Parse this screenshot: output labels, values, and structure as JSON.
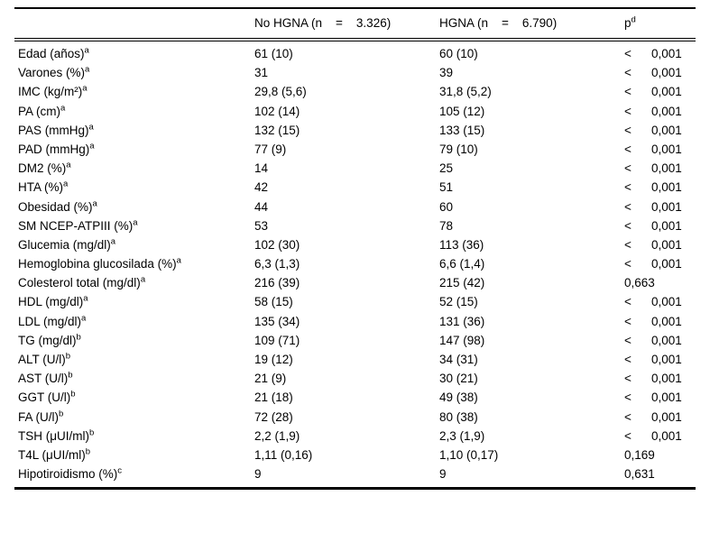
{
  "colors": {
    "text": "#000000",
    "rule": "#000000",
    "background": "#ffffff"
  },
  "table": {
    "header": {
      "empty": "",
      "no_hgna": {
        "pre": "No HGNA (n",
        "eq": "=",
        "n": "3.326)"
      },
      "hgna": {
        "pre": "HGNA (n",
        "eq": "=",
        "n": "6.790)"
      },
      "p": {
        "text": "p",
        "sup": "d"
      }
    },
    "rows": [
      {
        "label": "Edad (años)",
        "sup": "a",
        "values": [
          "61 (10)",
          "60 (10)"
        ],
        "p": "< 0,001"
      },
      {
        "label": "Varones (%)",
        "sup": "a",
        "values": [
          "31",
          "39"
        ],
        "p": "< 0,001"
      },
      {
        "label": "IMC (kg/m²)",
        "sup": "a",
        "values": [
          "29,8 (5,6)",
          "31,8 (5,2)"
        ],
        "p": "< 0,001"
      },
      {
        "label": "PA (cm)",
        "sup": "a",
        "values": [
          "102 (14)",
          "105 (12)"
        ],
        "p": "< 0,001"
      },
      {
        "label": "PAS (mmHg)",
        "sup": "a",
        "values": [
          "132 (15)",
          "133 (15)"
        ],
        "p": "< 0,001"
      },
      {
        "label": "PAD (mmHg)",
        "sup": "a",
        "values": [
          "77 (9)",
          "79 (10)"
        ],
        "p": "< 0,001"
      },
      {
        "label": "DM2 (%)",
        "sup": "a",
        "values": [
          "14",
          "25"
        ],
        "p": "< 0,001"
      },
      {
        "label": "HTA (%)",
        "sup": "a",
        "values": [
          "42",
          "51"
        ],
        "p": "< 0,001"
      },
      {
        "label": "Obesidad (%)",
        "sup": "a",
        "values": [
          "44",
          "60"
        ],
        "p": "< 0,001"
      },
      {
        "label": "SM NCEP-ATPIII (%)",
        "sup": "a",
        "values": [
          "53",
          "78"
        ],
        "p": "< 0,001"
      },
      {
        "label": "Glucemia (mg/dl)",
        "sup": "a",
        "values": [
          "102 (30)",
          "113 (36)"
        ],
        "p": "< 0,001"
      },
      {
        "label": "Hemoglobina glucosilada (%)",
        "sup": "a",
        "values": [
          "6,3 (1,3)",
          "6,6 (1,4)"
        ],
        "p": "< 0,001"
      },
      {
        "label": "Colesterol total (mg/dl)",
        "sup": "a",
        "values": [
          "216 (39)",
          "215 (42)"
        ],
        "p": "0,663"
      },
      {
        "label": "HDL (mg/dl)",
        "sup": "a",
        "values": [
          "58 (15)",
          "52 (15)"
        ],
        "p": "< 0,001"
      },
      {
        "label": "LDL (mg/dl)",
        "sup": "a",
        "values": [
          "135 (34)",
          "131 (36)"
        ],
        "p": "< 0,001"
      },
      {
        "label": "TG (mg/dl)",
        "sup": "b",
        "values": [
          "109 (71)",
          "147 (98)"
        ],
        "p": "< 0,001"
      },
      {
        "label": "ALT (U/l)",
        "sup": "b",
        "values": [
          "19 (12)",
          "34 (31)"
        ],
        "p": "< 0,001"
      },
      {
        "label": "AST (U/l)",
        "sup": "b",
        "values": [
          "21 (9)",
          "30 (21)"
        ],
        "p": "< 0,001"
      },
      {
        "label": "GGT (U/l)",
        "sup": "b",
        "values": [
          "21 (18)",
          "49 (38)"
        ],
        "p": "< 0,001"
      },
      {
        "label": "FA (U/l)",
        "sup": "b",
        "values": [
          "72 (28)",
          "80 (38)"
        ],
        "p": "< 0,001"
      },
      {
        "label": "TSH (μUI/ml)",
        "sup": "b",
        "values": [
          "2,2 (1,9)",
          "2,3 (1,9)"
        ],
        "p": "< 0,001"
      },
      {
        "label": "T4L (μUI/ml)",
        "sup": "b",
        "values": [
          "1,11 (0,16)",
          "1,10 (0,17)"
        ],
        "p": "0,169"
      },
      {
        "label": "Hipotiroidismo (%)",
        "sup": "c",
        "values": [
          "9",
          "9"
        ],
        "p": "0,631"
      }
    ]
  }
}
